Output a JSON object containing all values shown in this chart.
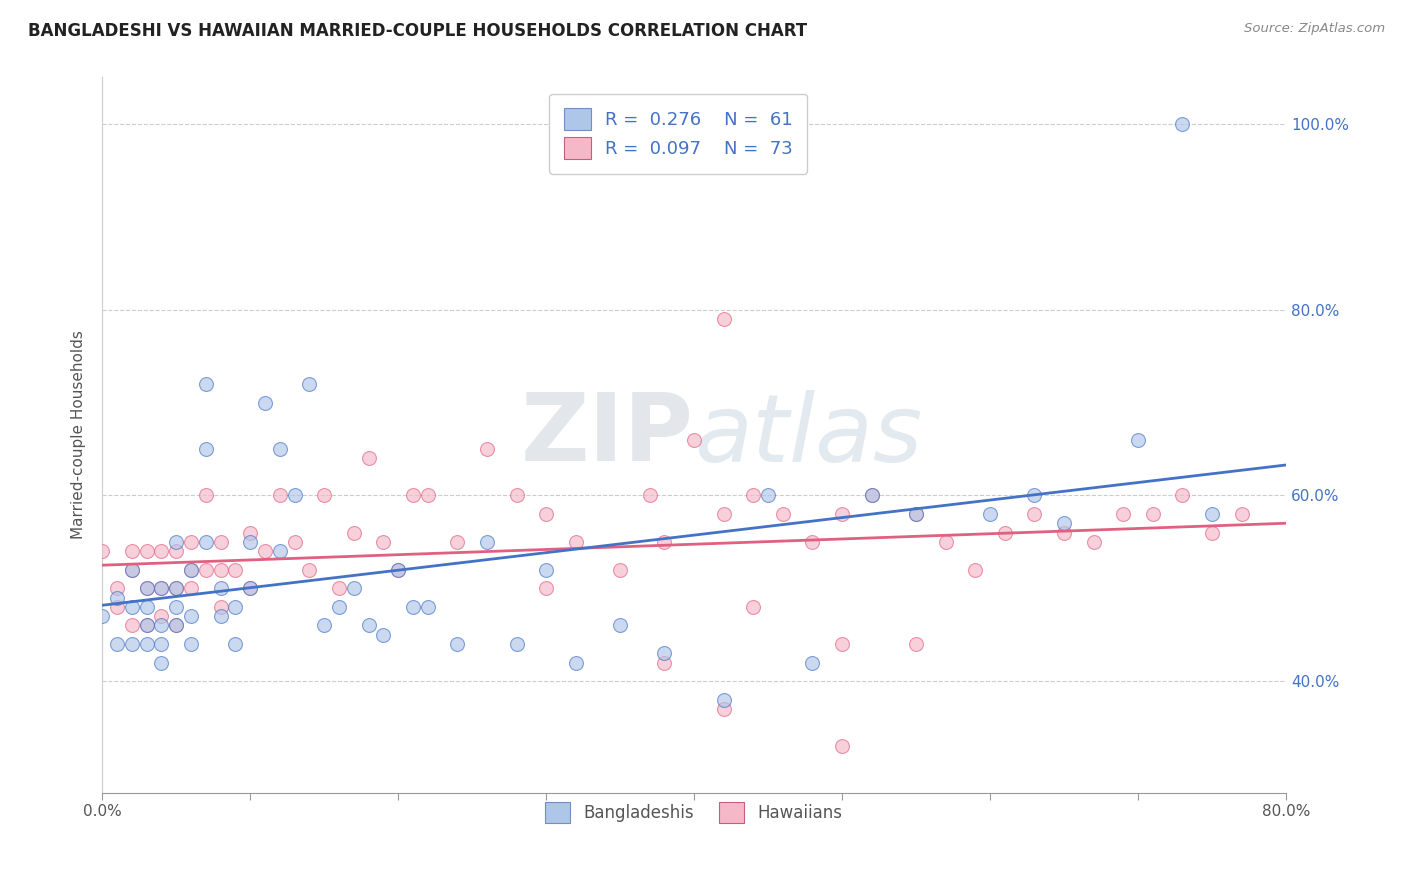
{
  "title": "BANGLADESHI VS HAWAIIAN MARRIED-COUPLE HOUSEHOLDS CORRELATION CHART",
  "source": "Source: ZipAtlas.com",
  "ylabel": "Married-couple Households",
  "xlim": [
    0.0,
    0.8
  ],
  "ylim": [
    0.28,
    1.05
  ],
  "yticks_right": [
    0.4,
    0.6,
    0.8,
    1.0
  ],
  "yticklabels_right": [
    "40.0%",
    "60.0%",
    "80.0%",
    "100.0%"
  ],
  "legend_blue_color": "#aec6e8",
  "legend_pink_color": "#f4b8c8",
  "blue_line_color": "#4472c4",
  "pink_line_color": "#e06080",
  "dot_alpha": 0.65,
  "dot_size": 100,
  "grid_color": "#cccccc",
  "grid_style": "--",
  "background_color": "#ffffff",
  "blue_x": [
    0.0,
    0.01,
    0.01,
    0.02,
    0.02,
    0.02,
    0.03,
    0.03,
    0.03,
    0.03,
    0.04,
    0.04,
    0.04,
    0.04,
    0.05,
    0.05,
    0.05,
    0.05,
    0.06,
    0.06,
    0.06,
    0.07,
    0.07,
    0.07,
    0.08,
    0.08,
    0.09,
    0.09,
    0.1,
    0.1,
    0.11,
    0.12,
    0.12,
    0.13,
    0.14,
    0.15,
    0.16,
    0.17,
    0.18,
    0.19,
    0.2,
    0.21,
    0.22,
    0.24,
    0.26,
    0.28,
    0.3,
    0.32,
    0.35,
    0.38,
    0.42,
    0.45,
    0.48,
    0.52,
    0.55,
    0.6,
    0.63,
    0.65,
    0.7,
    0.75,
    0.73
  ],
  "blue_y": [
    0.47,
    0.49,
    0.44,
    0.48,
    0.52,
    0.44,
    0.5,
    0.46,
    0.44,
    0.48,
    0.5,
    0.46,
    0.44,
    0.42,
    0.5,
    0.55,
    0.48,
    0.46,
    0.52,
    0.47,
    0.44,
    0.55,
    0.65,
    0.72,
    0.5,
    0.47,
    0.48,
    0.44,
    0.55,
    0.5,
    0.7,
    0.65,
    0.54,
    0.6,
    0.72,
    0.46,
    0.48,
    0.5,
    0.46,
    0.45,
    0.52,
    0.48,
    0.48,
    0.44,
    0.55,
    0.44,
    0.52,
    0.42,
    0.46,
    0.43,
    0.38,
    0.6,
    0.42,
    0.6,
    0.58,
    0.58,
    0.6,
    0.57,
    0.66,
    0.58,
    1.0
  ],
  "pink_x": [
    0.0,
    0.01,
    0.01,
    0.02,
    0.02,
    0.02,
    0.03,
    0.03,
    0.03,
    0.04,
    0.04,
    0.04,
    0.05,
    0.05,
    0.05,
    0.06,
    0.06,
    0.06,
    0.07,
    0.07,
    0.08,
    0.08,
    0.08,
    0.09,
    0.1,
    0.1,
    0.11,
    0.12,
    0.13,
    0.14,
    0.15,
    0.16,
    0.17,
    0.18,
    0.19,
    0.2,
    0.21,
    0.22,
    0.24,
    0.26,
    0.28,
    0.3,
    0.32,
    0.35,
    0.37,
    0.38,
    0.4,
    0.42,
    0.44,
    0.46,
    0.48,
    0.5,
    0.52,
    0.55,
    0.57,
    0.59,
    0.61,
    0.63,
    0.65,
    0.67,
    0.69,
    0.71,
    0.73,
    0.75,
    0.77,
    0.42,
    0.44,
    0.5,
    0.3,
    0.5,
    0.55,
    0.42,
    0.38
  ],
  "pink_y": [
    0.54,
    0.5,
    0.48,
    0.54,
    0.52,
    0.46,
    0.54,
    0.5,
    0.46,
    0.54,
    0.5,
    0.47,
    0.54,
    0.5,
    0.46,
    0.52,
    0.55,
    0.5,
    0.52,
    0.6,
    0.55,
    0.48,
    0.52,
    0.52,
    0.56,
    0.5,
    0.54,
    0.6,
    0.55,
    0.52,
    0.6,
    0.5,
    0.56,
    0.64,
    0.55,
    0.52,
    0.6,
    0.6,
    0.55,
    0.65,
    0.6,
    0.58,
    0.55,
    0.52,
    0.6,
    0.55,
    0.66,
    0.58,
    0.6,
    0.58,
    0.55,
    0.58,
    0.6,
    0.58,
    0.55,
    0.52,
    0.56,
    0.58,
    0.56,
    0.55,
    0.58,
    0.58,
    0.6,
    0.56,
    0.58,
    0.79,
    0.48,
    0.33,
    0.5,
    0.44,
    0.44,
    0.37,
    0.42
  ]
}
